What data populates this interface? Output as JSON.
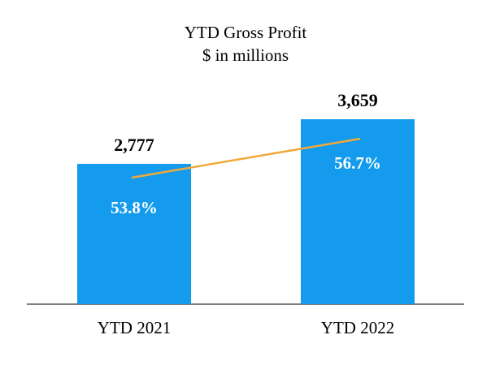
{
  "chart_data": {
    "type": "bar",
    "title": "YTD Gross Profit",
    "subtitle": "$ in millions",
    "categories": [
      "YTD 2021",
      "YTD 2022"
    ],
    "values": [
      2777,
      3659
    ],
    "value_labels": [
      "2,777",
      "3,659"
    ],
    "pct_series": {
      "name": "gross-margin-percent",
      "values": [
        53.8,
        56.7
      ],
      "labels": [
        "53.8%",
        "56.7%"
      ]
    },
    "bar_color": "#149bed",
    "trendline_color": "#f2a93b",
    "axis_color": "#7f7f7f",
    "ylim": [
      0,
      3659
    ],
    "legend": "none",
    "grid": false
  }
}
